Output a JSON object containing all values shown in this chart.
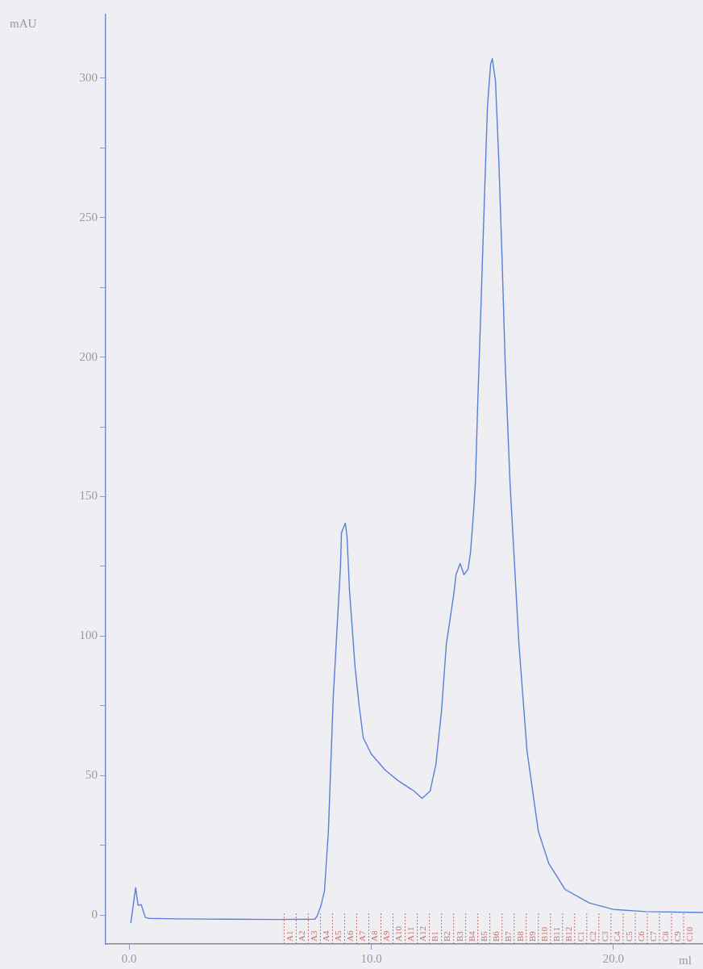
{
  "chart_data": {
    "type": "line",
    "xlabel": "ml",
    "ylabel": "mAU",
    "x": [
      0.07,
      0.27,
      0.37,
      0.5,
      0.67,
      0.83,
      2.0,
      4.0,
      6.0,
      7.67,
      7.77,
      7.93,
      8.07,
      8.23,
      8.43,
      8.73,
      8.77,
      8.93,
      9.0,
      9.1,
      9.33,
      9.5,
      9.67,
      10.0,
      10.57,
      11.1,
      11.77,
      12.1,
      12.43,
      12.67,
      12.9,
      13.1,
      13.4,
      13.5,
      13.67,
      13.83,
      14.0,
      14.1,
      14.23,
      14.3,
      14.4,
      14.53,
      14.67,
      14.8,
      14.93,
      15.0,
      15.13,
      15.27,
      15.4,
      15.53,
      15.73,
      16.1,
      16.43,
      16.9,
      17.33,
      18.0,
      19.0,
      20.0,
      21.33,
      23.7
    ],
    "series": [
      {
        "color": "#5a7fd8",
        "values": [
          -2.9,
          9.8,
          3.5,
          3.7,
          -0.9,
          -1.2,
          -1.4,
          -1.5,
          -1.6,
          -1.5,
          -0.3,
          3.5,
          8.7,
          30,
          78,
          125,
          137,
          140.5,
          135.6,
          116.5,
          89,
          75,
          63.5,
          57.7,
          52,
          48.2,
          44.4,
          41.8,
          44.4,
          54,
          73,
          97,
          114.5,
          122,
          126,
          122,
          124,
          130,
          145,
          155,
          184,
          218,
          256,
          290,
          305,
          307,
          299,
          270,
          236,
          198,
          155,
          97,
          59,
          30,
          18.5,
          9.2,
          4.3,
          2,
          1.2,
          0.9
        ]
      }
    ],
    "xlim": [
      -0.97,
      23.7
    ],
    "ylim": [
      -10.4,
      322.8
    ],
    "xticks": [
      {
        "value": 0,
        "label": "0.0"
      },
      {
        "value": 10,
        "label": "10.0"
      },
      {
        "value": 20,
        "label": "20.0"
      }
    ],
    "yticks": [
      0,
      {
        "value": 25,
        "label": null
      },
      50,
      {
        "value": 75,
        "label": null
      },
      100,
      {
        "value": 125,
        "label": null
      },
      150,
      {
        "value": 175,
        "label": null
      },
      200,
      {
        "value": 225,
        "label": null
      },
      250,
      {
        "value": 275,
        "label": null
      },
      300
    ],
    "marker": "none",
    "line_style": "solid",
    "grid": false,
    "legend": false,
    "ref_lines": [
      {
        "axis": "x",
        "value": 6.4,
        "label": "A1",
        "color": "#c8706a",
        "line_style": "dotted"
      },
      {
        "axis": "x",
        "value": 6.9,
        "label": "A2",
        "color": "#c8706a",
        "line_style": "dotted"
      },
      {
        "axis": "x",
        "value": 7.4,
        "label": "A3",
        "color": "#c8706a",
        "line_style": "dotted"
      },
      {
        "axis": "x",
        "value": 7.9,
        "label": "A4",
        "color": "#c8706a",
        "line_style": "dotted"
      },
      {
        "axis": "x",
        "value": 8.4,
        "label": "A5",
        "color": "#c8706a",
        "line_style": "dotted"
      },
      {
        "axis": "x",
        "value": 8.9,
        "label": "A6",
        "color": "#c8706a",
        "line_style": "dotted"
      },
      {
        "axis": "x",
        "value": 9.4,
        "label": "A7",
        "color": "#c8706a",
        "line_style": "dotted"
      },
      {
        "axis": "x",
        "value": 9.9,
        "label": "A8",
        "color": "#c8706a",
        "line_style": "dotted"
      },
      {
        "axis": "x",
        "value": 10.4,
        "label": "A9",
        "color": "#c8706a",
        "line_style": "dotted"
      },
      {
        "axis": "x",
        "value": 10.9,
        "label": "A10",
        "color": "#c8706a",
        "line_style": "dotted"
      },
      {
        "axis": "x",
        "value": 11.4,
        "label": "A11",
        "color": "#c8706a",
        "line_style": "dotted"
      },
      {
        "axis": "x",
        "value": 11.9,
        "label": "A12",
        "color": "#c8706a",
        "line_style": "dotted"
      },
      {
        "axis": "x",
        "value": 12.4,
        "label": "B1",
        "color": "#c8706a",
        "line_style": "dotted"
      },
      {
        "axis": "x",
        "value": 12.9,
        "label": "B2",
        "color": "#c8706a",
        "line_style": "dotted"
      },
      {
        "axis": "x",
        "value": 13.4,
        "label": "B3",
        "color": "#c8706a",
        "line_style": "dotted"
      },
      {
        "axis": "x",
        "value": 13.9,
        "label": "B4",
        "color": "#c8706a",
        "line_style": "dotted"
      },
      {
        "axis": "x",
        "value": 14.4,
        "label": "B5",
        "color": "#c8706a",
        "line_style": "dotted"
      },
      {
        "axis": "x",
        "value": 14.9,
        "label": "B6",
        "color": "#c8706a",
        "line_style": "dotted"
      },
      {
        "axis": "x",
        "value": 15.4,
        "label": "B7",
        "color": "#c8706a",
        "line_style": "dotted"
      },
      {
        "axis": "x",
        "value": 15.9,
        "label": "B8",
        "color": "#c8706a",
        "line_style": "dotted"
      },
      {
        "axis": "x",
        "value": 16.4,
        "label": "B9",
        "color": "#c8706a",
        "line_style": "dotted"
      },
      {
        "axis": "x",
        "value": 16.9,
        "label": "B10",
        "color": "#c8706a",
        "line_style": "dotted"
      },
      {
        "axis": "x",
        "value": 17.4,
        "label": "B11",
        "color": "#c8706a",
        "line_style": "dotted"
      },
      {
        "axis": "x",
        "value": 17.9,
        "label": "B12",
        "color": "#c8706a",
        "line_style": "dotted"
      },
      {
        "axis": "x",
        "value": 18.4,
        "label": "C1",
        "color": "#c8706a",
        "line_style": "dotted"
      },
      {
        "axis": "x",
        "value": 18.9,
        "label": "C2",
        "color": "#c8706a",
        "line_style": "dotted"
      },
      {
        "axis": "x",
        "value": 19.4,
        "label": "C3",
        "color": "#c8706a",
        "line_style": "dotted"
      },
      {
        "axis": "x",
        "value": 19.9,
        "label": "C4",
        "color": "#c8706a",
        "line_style": "dotted"
      },
      {
        "axis": "x",
        "value": 20.4,
        "label": "C5",
        "color": "#c8706a",
        "line_style": "dotted"
      },
      {
        "axis": "x",
        "value": 20.9,
        "label": "C6",
        "color": "#c8706a",
        "line_style": "dotted"
      },
      {
        "axis": "x",
        "value": 21.4,
        "label": "C7",
        "color": "#c8706a",
        "line_style": "dotted"
      },
      {
        "axis": "x",
        "value": 21.9,
        "label": "C8",
        "color": "#c8706a",
        "line_style": "dotted"
      },
      {
        "axis": "x",
        "value": 22.4,
        "label": "C9",
        "color": "#c8706a",
        "line_style": "dotted"
      },
      {
        "axis": "x",
        "value": 22.9,
        "label": "C10",
        "color": "#c8706a",
        "line_style": "dotted"
      }
    ]
  }
}
